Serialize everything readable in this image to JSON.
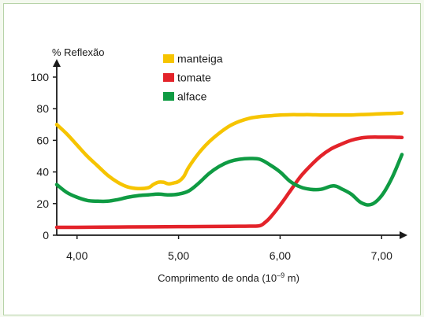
{
  "chart_data": {
    "type": "line",
    "title": "",
    "ylabel": "% Reflexão",
    "xlabel_text": "Comprimento de onda (10",
    "xlabel_sup": "–9",
    "xlabel_unit": " m)",
    "xlim": [
      3.8,
      7.2
    ],
    "ylim": [
      0,
      100
    ],
    "x_ticks": [
      4.0,
      5.0,
      6.0,
      7.0
    ],
    "x_tick_labels": [
      "4,00",
      "5,00",
      "6,00",
      "7,00"
    ],
    "y_ticks": [
      0,
      20,
      40,
      60,
      80,
      100
    ],
    "y_tick_labels": [
      "0",
      "20",
      "40",
      "60",
      "80",
      "100"
    ],
    "grid": false,
    "legend_position": "top-center",
    "series": [
      {
        "name": "manteiga",
        "color": "#f6c400",
        "x": [
          3.8,
          3.9,
          4.0,
          4.1,
          4.2,
          4.3,
          4.4,
          4.5,
          4.6,
          4.7,
          4.75,
          4.8,
          4.85,
          4.9,
          4.95,
          5.0,
          5.05,
          5.1,
          5.2,
          5.3,
          5.4,
          5.5,
          5.6,
          5.7,
          5.8,
          5.9,
          6.0,
          6.1,
          6.2,
          6.3,
          6.4,
          6.5,
          6.6,
          6.7,
          6.8,
          6.9,
          7.0,
          7.1,
          7.2
        ],
        "y": [
          70,
          64,
          57,
          50,
          44,
          38,
          33.5,
          30.5,
          29.5,
          30,
          32,
          33.5,
          33.5,
          32.5,
          33,
          34,
          37,
          43,
          52,
          59,
          64.5,
          69,
          72,
          74,
          75,
          75.5,
          76,
          76.2,
          76.2,
          76.2,
          76,
          76,
          76,
          76,
          76.3,
          76.5,
          76.8,
          77,
          77.3
        ]
      },
      {
        "name": "tomate",
        "color": "#e3232a",
        "x": [
          3.8,
          4.0,
          4.5,
          5.0,
          5.5,
          5.7,
          5.8,
          5.85,
          5.9,
          6.0,
          6.1,
          6.2,
          6.3,
          6.4,
          6.5,
          6.6,
          6.7,
          6.8,
          6.9,
          7.0,
          7.1,
          7.2
        ],
        "y": [
          5,
          5,
          5.2,
          5.4,
          5.6,
          5.7,
          6,
          8,
          11,
          19,
          28,
          37,
          44,
          50,
          54.5,
          57.5,
          60,
          61.5,
          62,
          62,
          62,
          61.8
        ]
      },
      {
        "name": "alface",
        "color": "#0f9b43",
        "x": [
          3.8,
          3.9,
          4.0,
          4.1,
          4.2,
          4.3,
          4.4,
          4.5,
          4.6,
          4.7,
          4.8,
          4.9,
          5.0,
          5.1,
          5.2,
          5.3,
          5.4,
          5.5,
          5.6,
          5.7,
          5.8,
          5.9,
          6.0,
          6.1,
          6.2,
          6.3,
          6.4,
          6.5,
          6.55,
          6.6,
          6.7,
          6.8,
          6.9,
          7.0,
          7.1,
          7.2
        ],
        "y": [
          32,
          27,
          24,
          22,
          21.5,
          21.5,
          22.5,
          24,
          25,
          25.5,
          26,
          25.5,
          26,
          28,
          33,
          39,
          43.5,
          46.5,
          48,
          48.5,
          48,
          44.5,
          40,
          34,
          30.5,
          29,
          29,
          31,
          31,
          29.5,
          26,
          20.5,
          19.5,
          25,
          36,
          51
        ]
      }
    ]
  }
}
